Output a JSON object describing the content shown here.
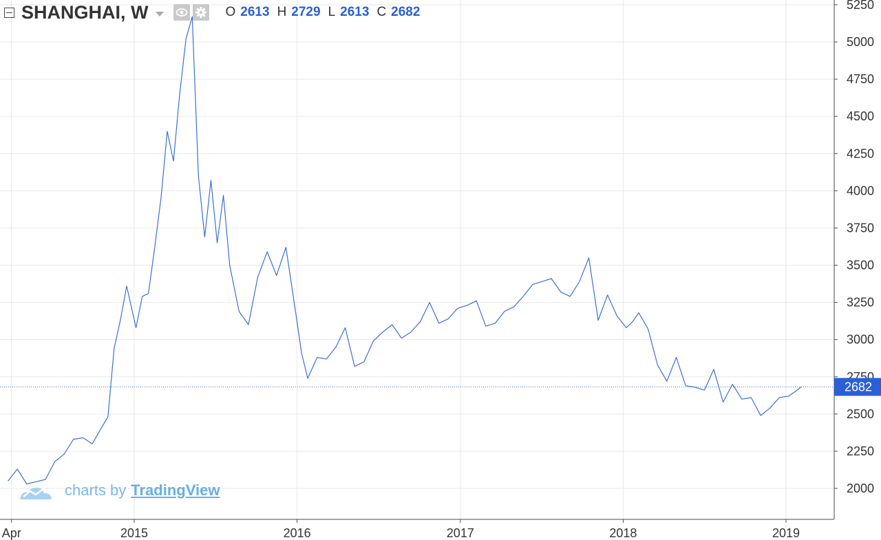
{
  "header": {
    "symbol": "SHANGHAI, W",
    "o_label": "O",
    "o_value": "2613",
    "h_label": "H",
    "h_value": "2729",
    "l_label": "L",
    "l_value": "2613",
    "c_label": "C",
    "c_value": "2682",
    "icons": [
      "collapse-icon",
      "dropdown-caret-icon",
      "eye-icon",
      "gear-icon"
    ]
  },
  "watermark": {
    "text": "charts by",
    "brand": "TradingView"
  },
  "colors": {
    "line": "#3a6fd8",
    "price_label_bg": "#2a5fd6",
    "grid": "#e9e9e9",
    "axis": "#4a4a4a",
    "text": "#333333"
  },
  "chart_data": {
    "type": "line",
    "xaxis_ticks": [
      {
        "label": "Apr",
        "x": "2014-04"
      },
      {
        "label": "2015",
        "x": "2015-01"
      },
      {
        "label": "2016",
        "x": "2016-01"
      },
      {
        "label": "2017",
        "x": "2017-01"
      },
      {
        "label": "2018",
        "x": "2018-01"
      },
      {
        "label": "2019",
        "x": "2019-01"
      }
    ],
    "yaxis_ticks": [
      2000,
      2250,
      2500,
      2750,
      3000,
      3250,
      3500,
      3750,
      4000,
      4250,
      4500,
      4750,
      5000,
      5250
    ],
    "ylim": [
      1750,
      5270
    ],
    "xlim": [
      "2014-03-24",
      "2019-05-09"
    ],
    "grid": true,
    "last_price": 2682,
    "last_price_label": "2682",
    "series": [
      {
        "x": [
          "2014-03-24",
          "2014-04-14",
          "2014-05-05",
          "2014-05-26",
          "2014-06-16",
          "2014-07-07",
          "2014-07-28",
          "2014-08-18",
          "2014-09-08",
          "2014-09-29",
          "2014-10-20",
          "2014-11-03",
          "2014-11-17",
          "2014-12-01",
          "2014-12-15",
          "2015-01-05",
          "2015-01-19",
          "2015-02-02",
          "2015-02-16",
          "2015-03-02",
          "2015-03-16",
          "2015-03-30",
          "2015-04-13",
          "2015-04-27",
          "2015-05-11",
          "2015-05-25",
          "2015-06-08",
          "2015-06-22",
          "2015-07-06",
          "2015-07-20",
          "2015-08-03",
          "2015-08-24",
          "2015-09-14",
          "2015-10-05",
          "2015-10-26",
          "2015-11-16",
          "2015-12-07",
          "2015-12-28",
          "2016-01-11",
          "2016-01-25",
          "2016-02-15",
          "2016-03-07",
          "2016-03-28",
          "2016-04-18",
          "2016-05-09",
          "2016-05-30",
          "2016-06-20",
          "2016-07-11",
          "2016-08-01",
          "2016-08-22",
          "2016-09-12",
          "2016-10-03",
          "2016-10-24",
          "2016-11-14",
          "2016-12-05",
          "2016-12-26",
          "2017-01-16",
          "2017-02-06",
          "2017-02-27",
          "2017-03-20",
          "2017-04-10",
          "2017-05-01",
          "2017-05-22",
          "2017-06-12",
          "2017-07-03",
          "2017-07-24",
          "2017-08-14",
          "2017-09-04",
          "2017-09-25",
          "2017-10-16",
          "2017-11-06",
          "2017-11-27",
          "2017-12-18",
          "2018-01-08",
          "2018-01-22",
          "2018-02-05",
          "2018-02-26",
          "2018-03-19",
          "2018-04-09",
          "2018-04-30",
          "2018-05-21",
          "2018-06-11",
          "2018-07-02",
          "2018-07-23",
          "2018-08-13",
          "2018-09-03",
          "2018-09-24",
          "2018-10-15",
          "2018-11-05",
          "2018-11-26",
          "2018-12-17",
          "2019-01-07",
          "2019-01-21",
          "2019-02-04"
        ],
        "values": [
          2050,
          2130,
          2030,
          2045,
          2060,
          2180,
          2230,
          2330,
          2340,
          2300,
          2410,
          2480,
          2940,
          3130,
          3360,
          3080,
          3290,
          3310,
          3620,
          3950,
          4400,
          4200,
          4650,
          5020,
          5170,
          4100,
          3690,
          4070,
          3650,
          3970,
          3500,
          3190,
          3100,
          3420,
          3590,
          3430,
          3620,
          3200,
          2910,
          2740,
          2880,
          2870,
          2950,
          3080,
          2820,
          2850,
          2990,
          3050,
          3100,
          3010,
          3050,
          3120,
          3250,
          3110,
          3140,
          3210,
          3230,
          3260,
          3090,
          3110,
          3190,
          3220,
          3290,
          3370,
          3390,
          3410,
          3320,
          3290,
          3390,
          3550,
          3130,
          3300,
          3160,
          3080,
          3120,
          3180,
          3070,
          2830,
          2720,
          2880,
          2690,
          2680,
          2660,
          2800,
          2580,
          2700,
          2600,
          2610,
          2490,
          2540,
          2610,
          2620,
          2650,
          2682
        ]
      }
    ]
  }
}
